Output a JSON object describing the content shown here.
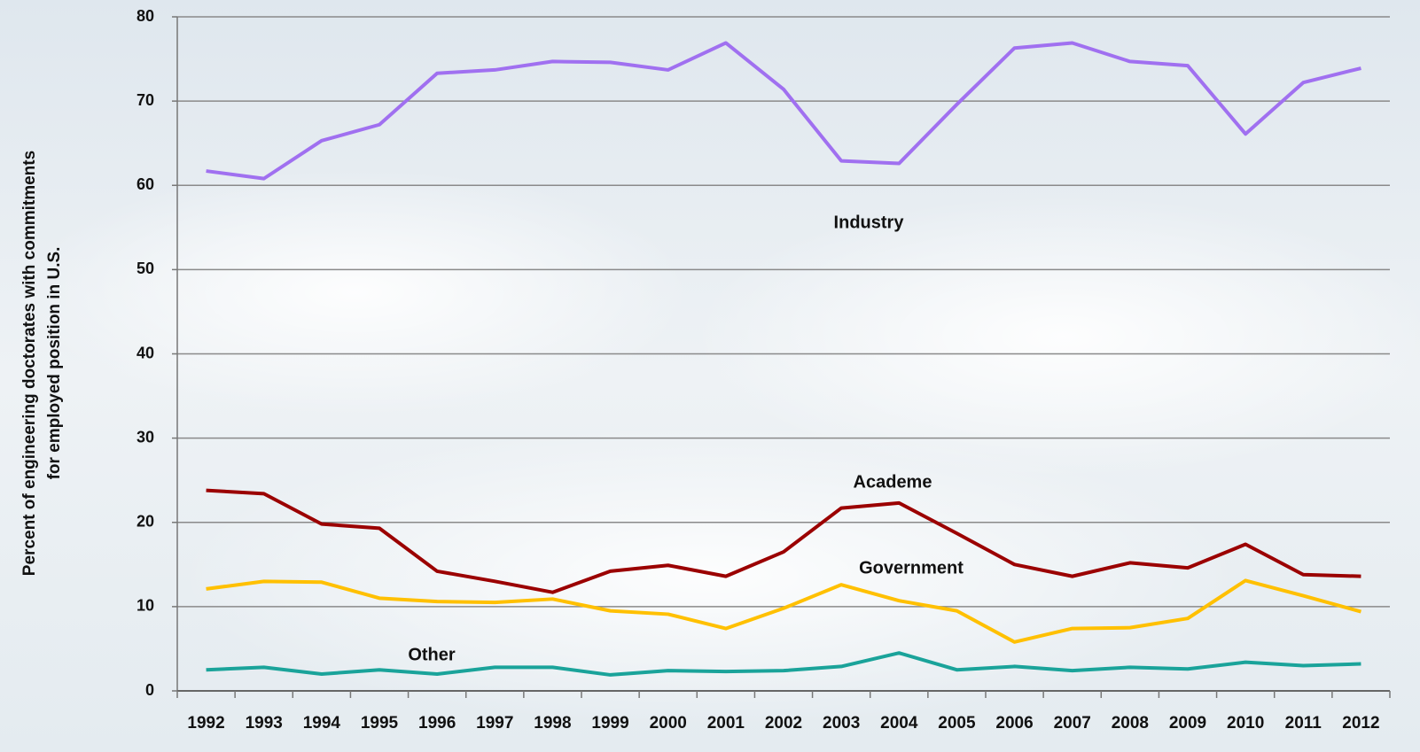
{
  "chart_data": {
    "type": "line",
    "ylabel": [
      "Percent of engineering doctorates with commitments",
      "for employed position in U.S."
    ],
    "categories": [
      "1992",
      "1993",
      "1994",
      "1995",
      "1996",
      "1997",
      "1998",
      "1999",
      "2000",
      "2001",
      "2002",
      "2003",
      "2004",
      "2005",
      "2006",
      "2007",
      "2008",
      "2009",
      "2010",
      "2011",
      "2012"
    ],
    "series": [
      {
        "name": "Industry",
        "color": "#a070f0",
        "values": [
          61.7,
          60.8,
          65.3,
          67.2,
          73.3,
          73.7,
          74.7,
          74.6,
          73.7,
          76.9,
          71.4,
          62.9,
          62.6,
          69.6,
          76.3,
          76.9,
          74.7,
          74.2,
          66.1,
          72.2,
          73.9
        ]
      },
      {
        "name": "Academe",
        "color": "#9b0000",
        "values": [
          23.8,
          23.4,
          19.8,
          19.3,
          14.2,
          13.0,
          11.7,
          14.2,
          14.9,
          13.6,
          16.5,
          21.7,
          22.3,
          18.7,
          15.0,
          13.6,
          15.2,
          14.6,
          17.4,
          13.8,
          13.6
        ]
      },
      {
        "name": "Government",
        "color": "#ffc000",
        "values": [
          12.1,
          13.0,
          12.9,
          11.0,
          10.6,
          10.5,
          10.9,
          9.5,
          9.1,
          7.4,
          9.8,
          12.6,
          10.7,
          9.5,
          5.8,
          7.4,
          7.5,
          8.6,
          13.1,
          11.3,
          9.4
        ]
      },
      {
        "name": "Other",
        "color": "#1aa39a",
        "values": [
          2.5,
          2.8,
          2.0,
          2.5,
          2.0,
          2.8,
          2.8,
          1.9,
          2.4,
          2.3,
          2.4,
          2.9,
          4.5,
          2.5,
          2.9,
          2.4,
          2.8,
          2.6,
          3.4,
          3.0,
          3.2
        ]
      }
    ],
    "ylim": [
      0,
      80
    ],
    "yticks": [
      0,
      10,
      20,
      30,
      40,
      50,
      60,
      70,
      80
    ],
    "grid": true
  }
}
